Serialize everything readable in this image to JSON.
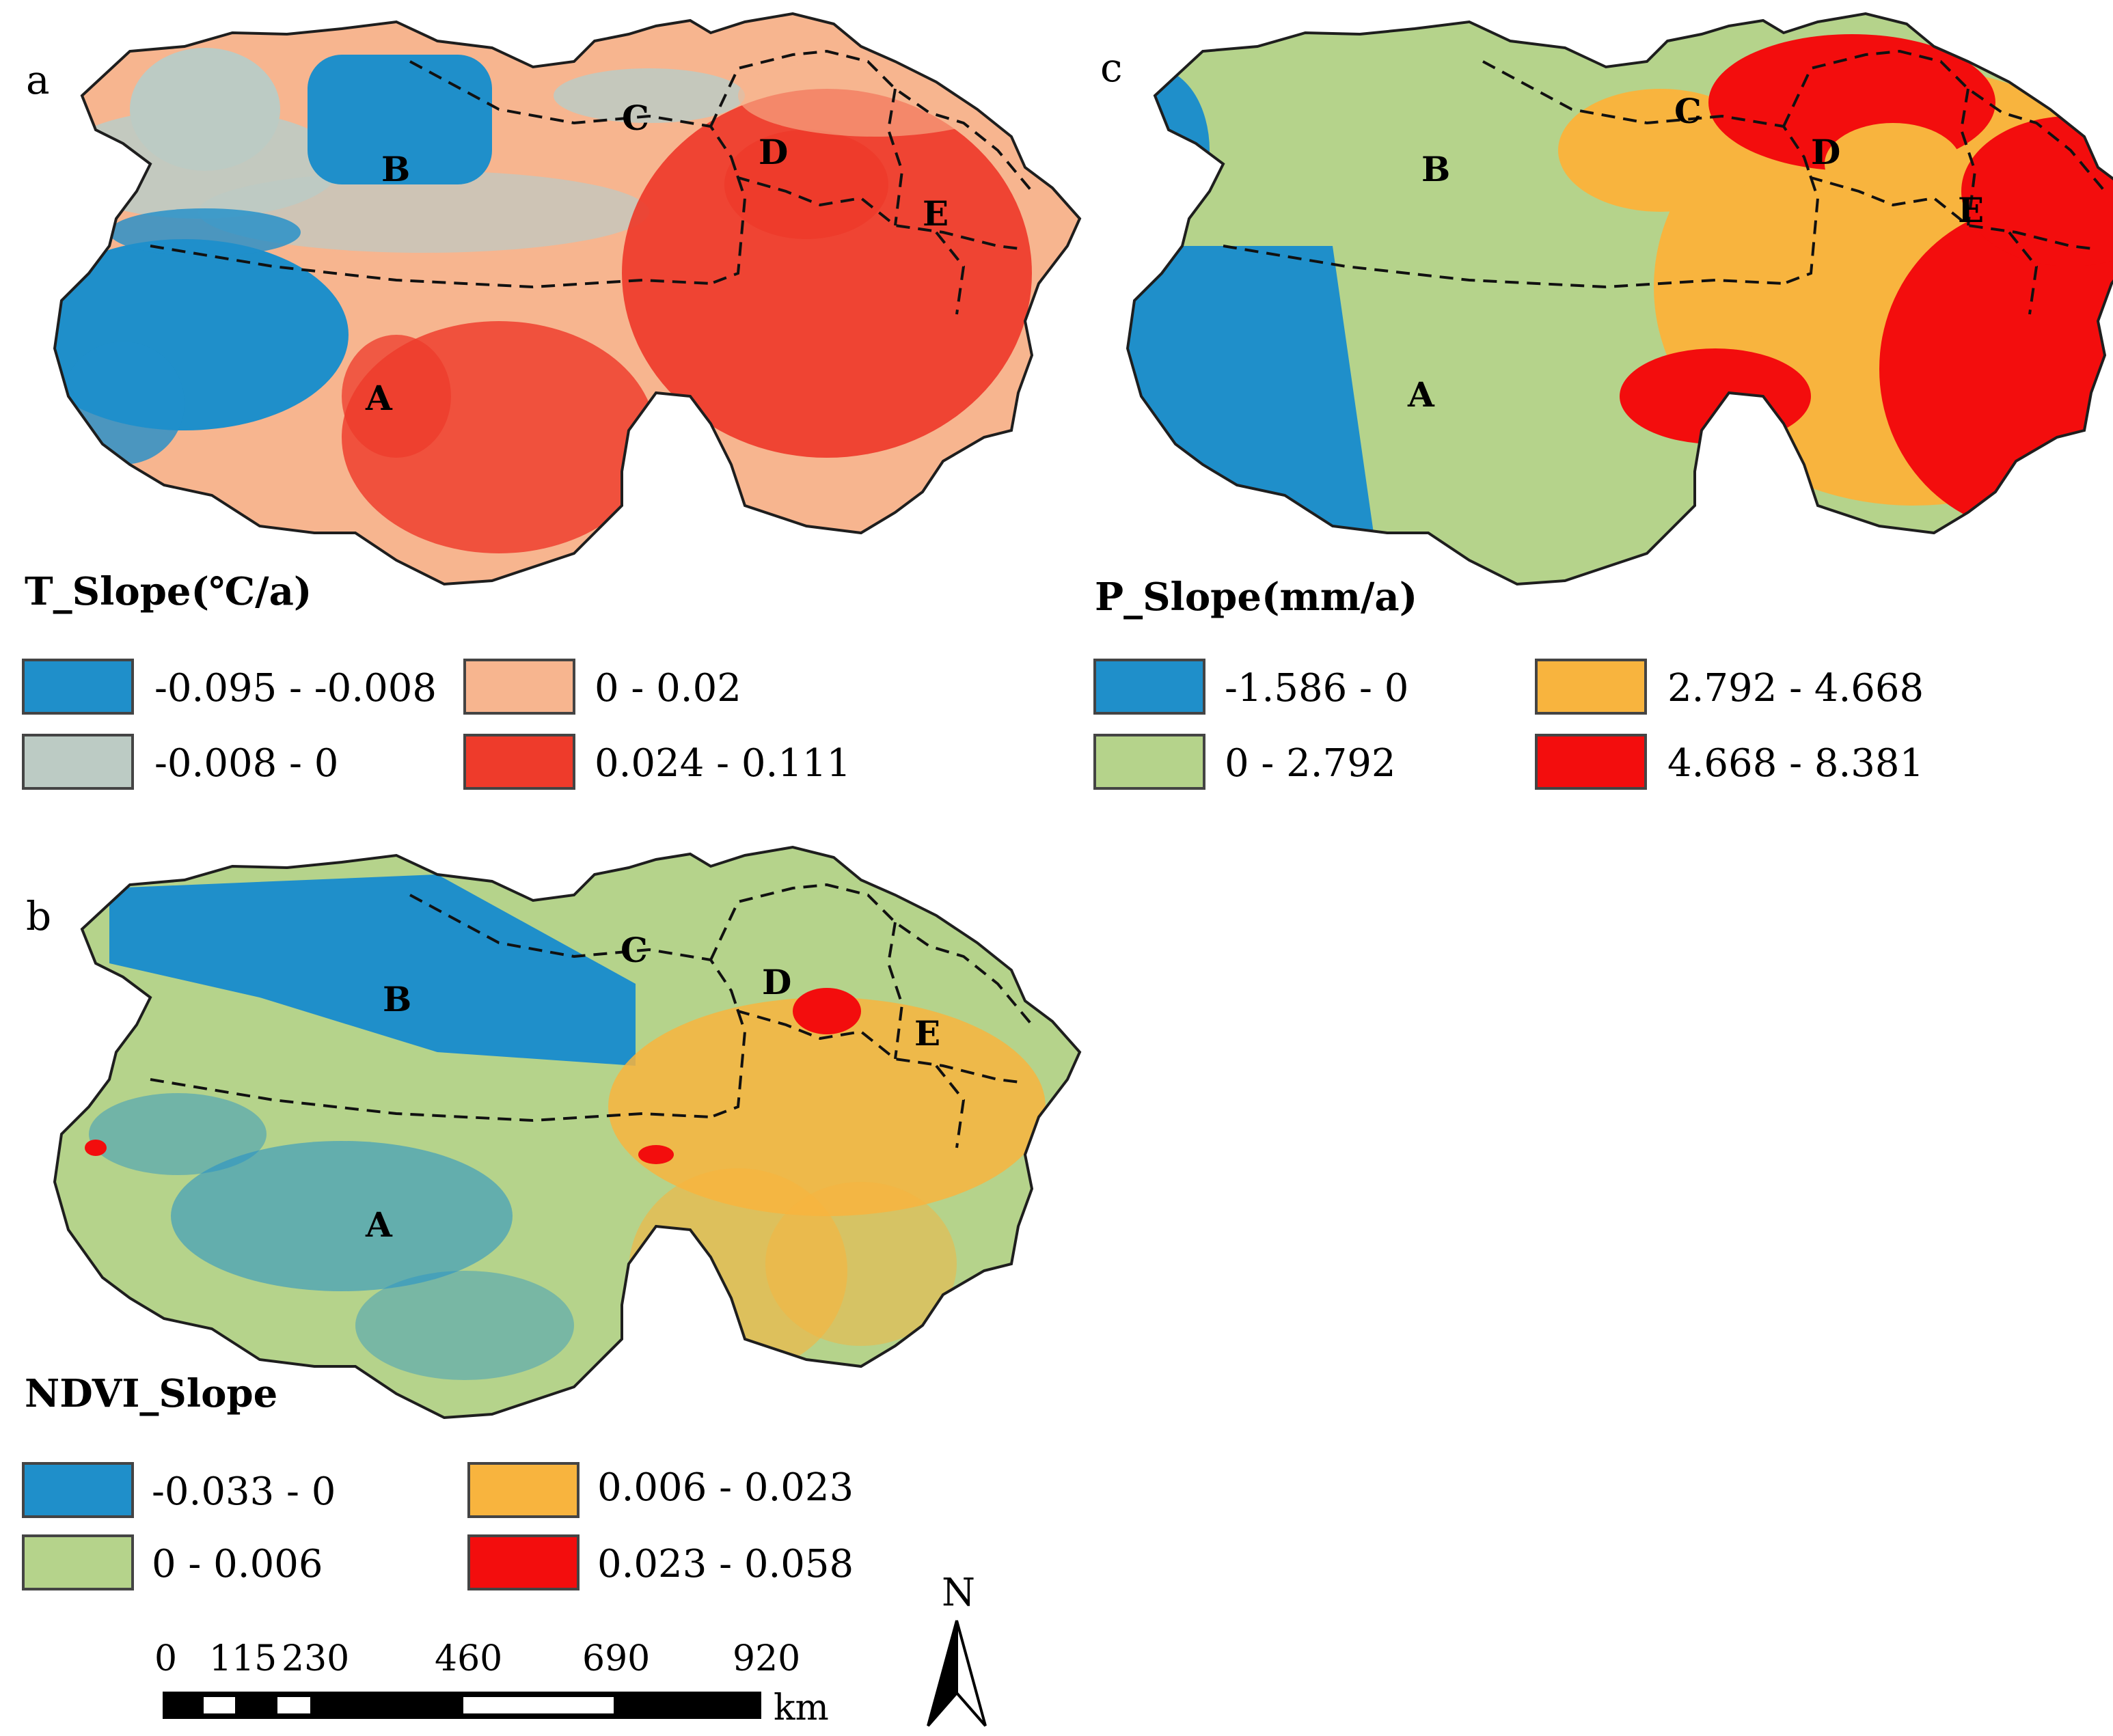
{
  "panels": [
    {
      "id": "a",
      "label": "a",
      "legend_title": "T_Slope(℃/a)",
      "base_color": "#f7b58f",
      "classes": [
        {
          "label": "-0.095 - -0.008",
          "color": "#1f8fca"
        },
        {
          "label": "0 - 0.02",
          "color": "#f7b58f"
        },
        {
          "label": "-0.008 - 0",
          "color": "#bccbc4"
        },
        {
          "label": "0.024 - 0.111",
          "color": "#ee3b2b"
        }
      ],
      "regions": [
        "A",
        "B",
        "C",
        "D",
        "E"
      ]
    },
    {
      "id": "c",
      "label": "c",
      "legend_title": "P_Slope(mm/a)",
      "base_color": "#b5d38b",
      "classes": [
        {
          "label": "-1.586 - 0",
          "color": "#1f8fca"
        },
        {
          "label": "2.792 - 4.668",
          "color": "#f8b43e"
        },
        {
          "label": "0 - 2.792",
          "color": "#b5d38b"
        },
        {
          "label": "4.668 - 8.381",
          "color": "#f30d0d"
        }
      ],
      "regions": [
        "A",
        "B",
        "C",
        "D",
        "E"
      ]
    },
    {
      "id": "b",
      "label": "b",
      "legend_title": "NDVI_Slope",
      "base_color": "#b5d38b",
      "classes": [
        {
          "label": "-0.033 - 0",
          "color": "#1f8fca"
        },
        {
          "label": "0.006 - 0.023",
          "color": "#f8b43e"
        },
        {
          "label": "0 - 0.006",
          "color": "#b5d38b"
        },
        {
          "label": "0.023 - 0.058",
          "color": "#f30d0d"
        }
      ],
      "regions": [
        "A",
        "B",
        "C",
        "D",
        "E"
      ]
    }
  ],
  "scale_bar": {
    "ticks": [
      "0",
      "115",
      "230",
      "460",
      "690",
      "920"
    ],
    "unit": "km"
  },
  "north_arrow": {
    "label": "N"
  }
}
